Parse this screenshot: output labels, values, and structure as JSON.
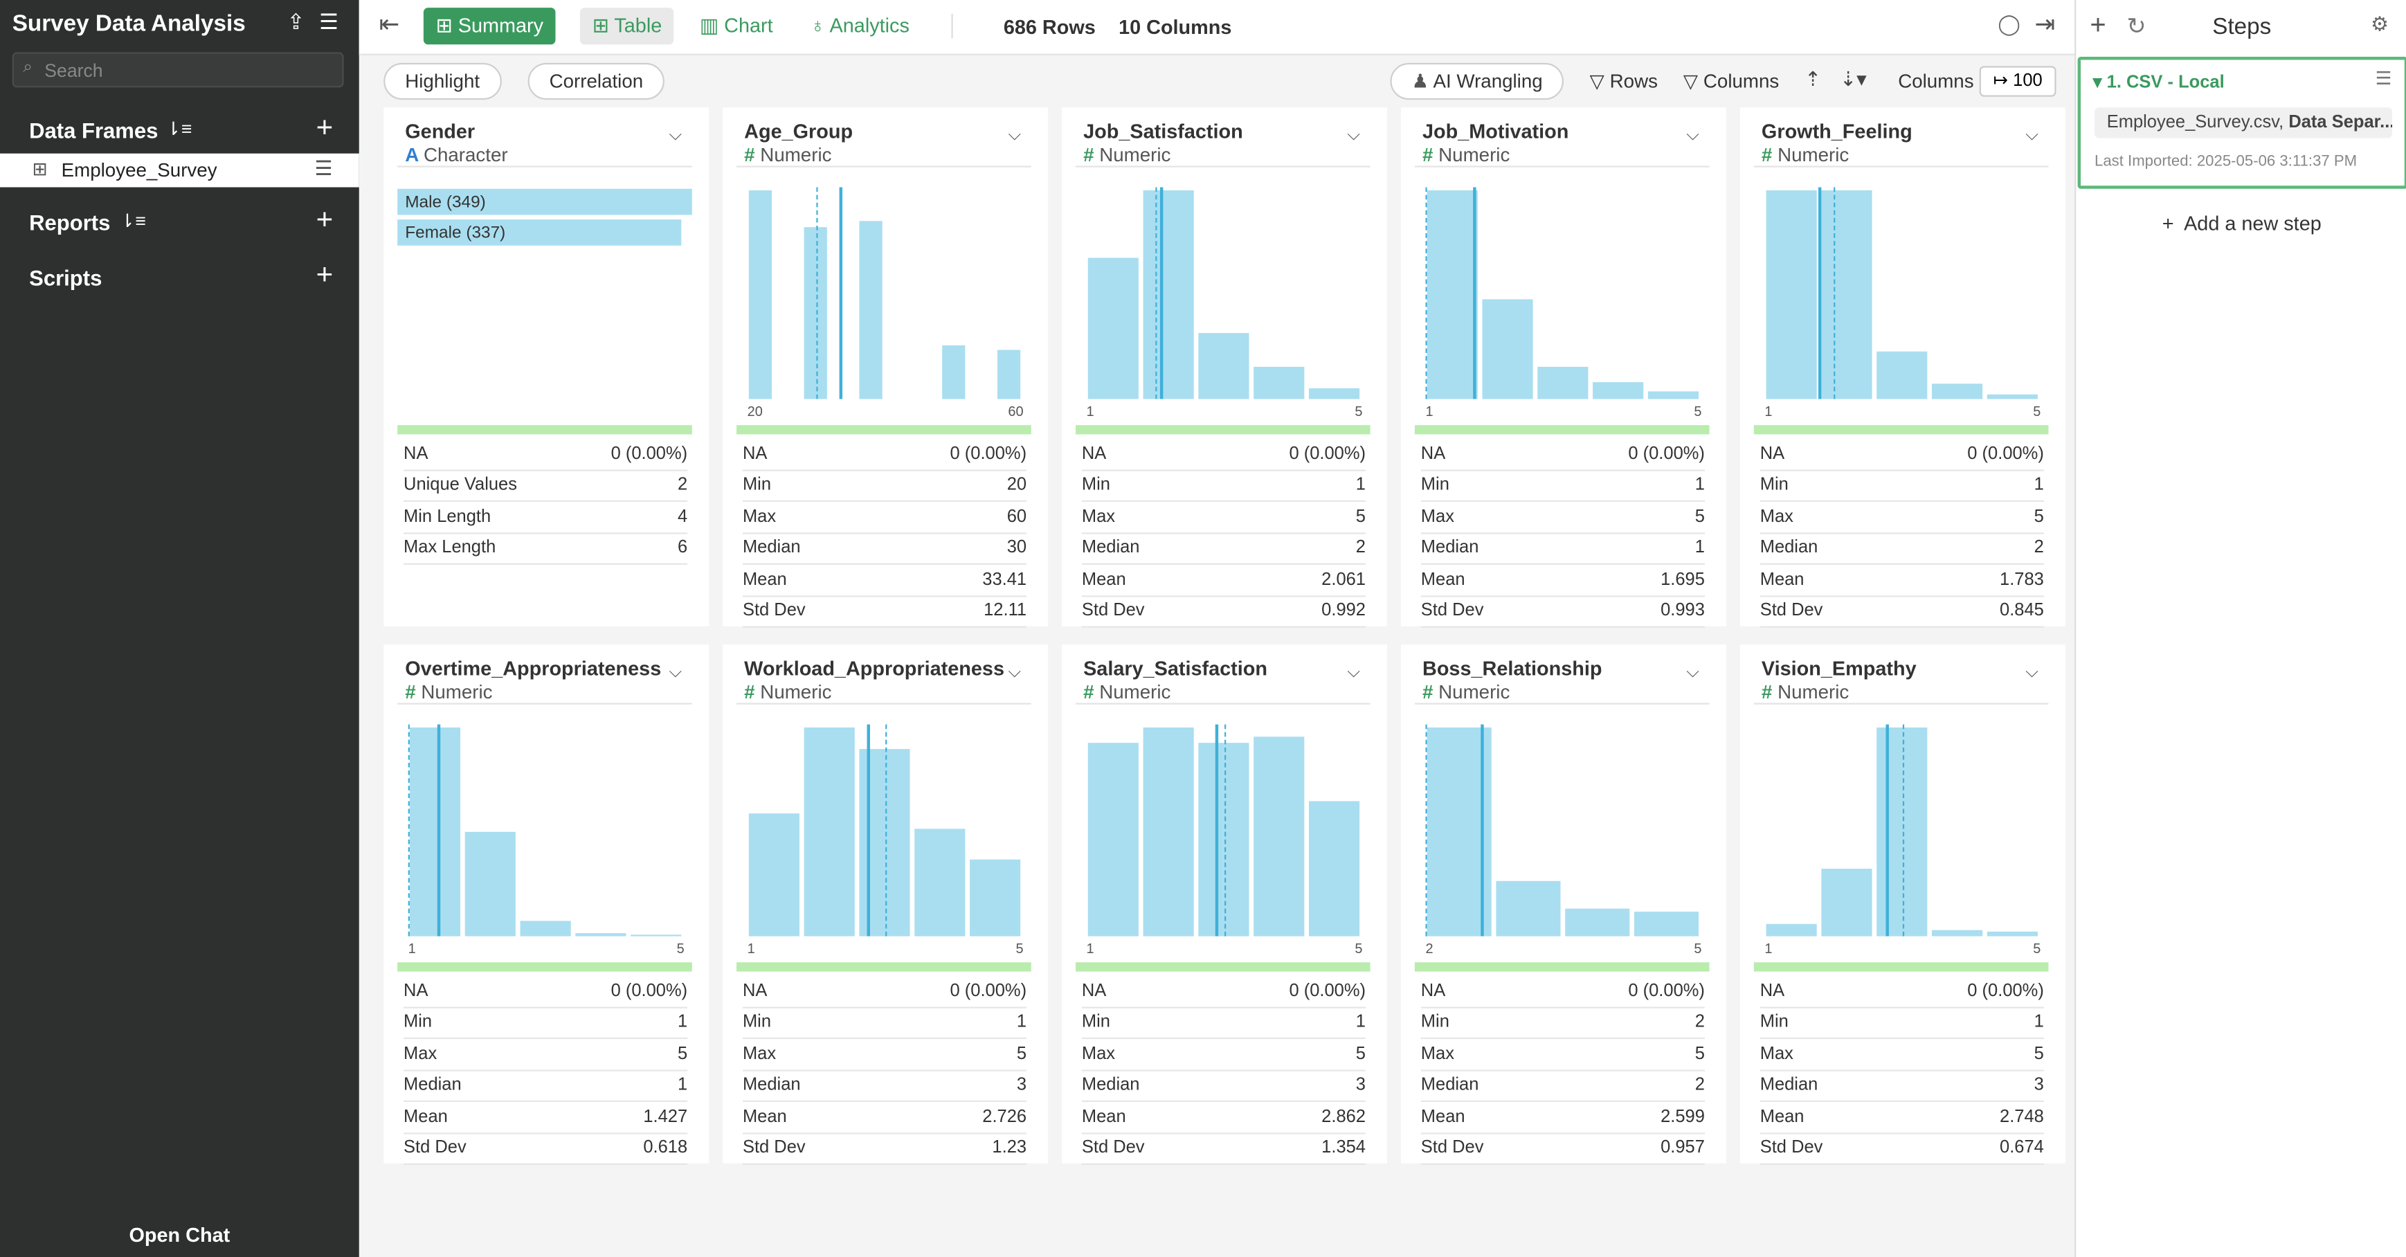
{
  "sidebar": {
    "title": "Survey Data Analysis",
    "search_placeholder": "Search",
    "data_frames": "Data Frames",
    "frame_item": "Employee_Survey",
    "reports": "Reports",
    "scripts": "Scripts",
    "open_chat": "Open Chat"
  },
  "toolbar": {
    "tabs": [
      "Summary",
      "Table",
      "Chart",
      "Analytics"
    ],
    "rows": "686 Rows",
    "columns": "10 Columns"
  },
  "subbar": {
    "left": [
      "Highlight",
      "Correlation"
    ],
    "ai": "AI Wrangling",
    "rows": "Rows",
    "columns": "Columns",
    "columns_label": "Columns",
    "limit": "100"
  },
  "steps": {
    "title": "Steps",
    "step_name": "1. CSV - Local",
    "file": "Employee_Survey.csv,",
    "file_bold": "Data Separ...",
    "imported": "Last Imported: 2025-05-06 3:11:37 PM",
    "add": "Add a new step"
  },
  "columns": [
    {
      "name": "Gender",
      "type": "Character",
      "categories": [
        {
          "label": "Male (349)",
          "count": 349
        },
        {
          "label": "Female (337)",
          "count": 337
        }
      ],
      "stats": [
        {
          "label": "NA",
          "value": "0 (0.00%)"
        },
        {
          "label": "Unique Values",
          "value": 2
        },
        {
          "label": "Min Length",
          "value": 4
        },
        {
          "label": "Max Length",
          "value": 6
        }
      ]
    },
    {
      "name": "Age_Group",
      "type": "Numeric",
      "histogram": [
        136,
        0,
        112,
        0,
        116,
        0,
        0,
        35,
        0,
        32
      ],
      "stats": [
        {
          "label": "NA",
          "value": "0 (0.00%)"
        },
        {
          "label": "Min",
          "value": 20
        },
        {
          "label": "Max",
          "value": 60
        },
        {
          "label": "Median",
          "value": 30
        },
        {
          "label": "Mean",
          "value": 33.41
        },
        {
          "label": "Std Dev",
          "value": 12.11
        }
      ]
    },
    {
      "name": "Job_Satisfaction",
      "type": "Numeric",
      "histogram": [
        92,
        136,
        43,
        21,
        7
      ],
      "stats": [
        {
          "label": "NA",
          "value": "0 (0.00%)"
        },
        {
          "label": "Min",
          "value": 1
        },
        {
          "label": "Max",
          "value": 5
        },
        {
          "label": "Median",
          "value": 2
        },
        {
          "label": "Mean",
          "value": 2.061
        },
        {
          "label": "Std Dev",
          "value": 0.992
        }
      ]
    },
    {
      "name": "Job_Motivation",
      "type": "Numeric",
      "histogram": [
        136,
        65,
        21,
        11,
        5
      ],
      "stats": [
        {
          "label": "NA",
          "value": "0 (0.00%)"
        },
        {
          "label": "Min",
          "value": 1
        },
        {
          "label": "Max",
          "value": 5
        },
        {
          "label": "Median",
          "value": 1
        },
        {
          "label": "Mean",
          "value": 1.695
        },
        {
          "label": "Std Dev",
          "value": 0.993
        }
      ]
    },
    {
      "name": "Growth_Feeling",
      "type": "Numeric",
      "histogram": [
        136,
        136,
        31,
        10,
        3
      ],
      "stats": [
        {
          "label": "NA",
          "value": "0 (0.00%)"
        },
        {
          "label": "Min",
          "value": 1
        },
        {
          "label": "Max",
          "value": 5
        },
        {
          "label": "Median",
          "value": 2
        },
        {
          "label": "Mean",
          "value": 1.783
        },
        {
          "label": "Std Dev",
          "value": 0.845
        }
      ]
    },
    {
      "name": "Overtime_Appropriateness",
      "type": "Numeric",
      "histogram": [
        136,
        68,
        10,
        2,
        1
      ],
      "stats": [
        {
          "label": "NA",
          "value": "0 (0.00%)"
        },
        {
          "label": "Min",
          "value": 1
        },
        {
          "label": "Max",
          "value": 5
        },
        {
          "label": "Median",
          "value": 1
        },
        {
          "label": "Mean",
          "value": 1.427
        },
        {
          "label": "Std Dev",
          "value": 0.618
        }
      ]
    },
    {
      "name": "Workload_Appropriateness",
      "type": "Numeric",
      "histogram": [
        80,
        136,
        122,
        70,
        50
      ],
      "stats": [
        {
          "label": "NA",
          "value": "0 (0.00%)"
        },
        {
          "label": "Min",
          "value": 1
        },
        {
          "label": "Max",
          "value": 5
        },
        {
          "label": "Median",
          "value": 3
        },
        {
          "label": "Mean",
          "value": 2.726
        },
        {
          "label": "Std Dev",
          "value": 1.23
        }
      ]
    },
    {
      "name": "Salary_Satisfaction",
      "type": "Numeric",
      "histogram": [
        126,
        136,
        126,
        130,
        88
      ],
      "stats": [
        {
          "label": "NA",
          "value": "0 (0.00%)"
        },
        {
          "label": "Min",
          "value": 1
        },
        {
          "label": "Max",
          "value": 5
        },
        {
          "label": "Median",
          "value": 3
        },
        {
          "label": "Mean",
          "value": 2.862
        },
        {
          "label": "Std Dev",
          "value": 1.354
        }
      ]
    },
    {
      "name": "Boss_Relationship",
      "type": "Numeric",
      "histogram": [
        136,
        36,
        18,
        16
      ],
      "stats": [
        {
          "label": "NA",
          "value": "0 (0.00%)"
        },
        {
          "label": "Min",
          "value": 2
        },
        {
          "label": "Max",
          "value": 5
        },
        {
          "label": "Median",
          "value": 2
        },
        {
          "label": "Mean",
          "value": 2.599
        },
        {
          "label": "Std Dev",
          "value": 0.957
        }
      ]
    },
    {
      "name": "Vision_Empathy",
      "type": "Numeric",
      "histogram": [
        8,
        44,
        136,
        4,
        3
      ],
      "stats": [
        {
          "label": "NA",
          "value": "0 (0.00%)"
        },
        {
          "label": "Min",
          "value": 1
        },
        {
          "label": "Max",
          "value": 5
        },
        {
          "label": "Median",
          "value": 3
        },
        {
          "label": "Mean",
          "value": 2.748
        },
        {
          "label": "Std Dev",
          "value": 0.674
        }
      ]
    }
  ]
}
